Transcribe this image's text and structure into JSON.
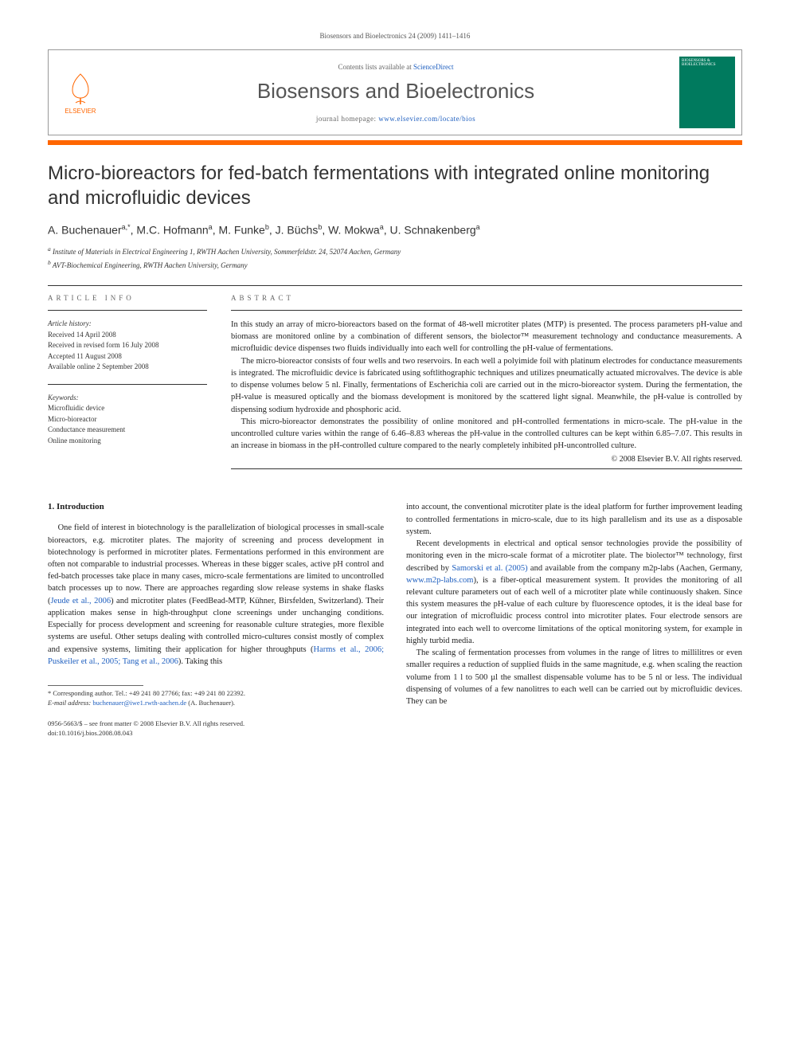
{
  "page_header": "Biosensors and Bioelectronics 24 (2009) 1411–1416",
  "journal_box": {
    "contents_text": "Contents lists available at ",
    "contents_link": "ScienceDirect",
    "journal_title": "Biosensors and Bioelectronics",
    "homepage_text": "journal homepage: ",
    "homepage_link": "www.elsevier.com/locate/bios",
    "publisher_logo_text": "ELSEVIER",
    "cover_text": "BIOSENSORS & BIOELECTRONICS"
  },
  "article": {
    "title": "Micro-bioreactors for fed-batch fermentations with integrated online monitoring and microfluidic devices",
    "authors_html": "A. Buchenauer<sup>a,*</sup>, M.C. Hofmann<sup>a</sup>, M. Funke<sup>b</sup>, J. Büchs<sup>b</sup>, W. Mokwa<sup>a</sup>, U. Schnakenberg<sup>a</sup>",
    "affiliations": {
      "a": "Institute of Materials in Electrical Engineering 1, RWTH Aachen University, Sommerfeldstr. 24, 52074 Aachen, Germany",
      "b": "AVT-Biochemical Engineering, RWTH Aachen University, Germany"
    }
  },
  "article_info": {
    "heading": "article info",
    "history_label": "Article history:",
    "history": [
      "Received 14 April 2008",
      "Received in revised form 16 July 2008",
      "Accepted 11 August 2008",
      "Available online 2 September 2008"
    ],
    "keywords_label": "Keywords:",
    "keywords": [
      "Microfluidic device",
      "Micro-bioreactor",
      "Conductance measurement",
      "Online monitoring"
    ]
  },
  "abstract": {
    "heading": "abstract",
    "paragraphs": [
      "In this study an array of micro-bioreactors based on the format of 48-well microtiter plates (MTP) is presented. The process parameters pH-value and biomass are monitored online by a combination of different sensors, the biolector™ measurement technology and conductance measurements. A microfluidic device dispenses two fluids individually into each well for controlling the pH-value of fermentations.",
      "The micro-bioreactor consists of four wells and two reservoirs. In each well a polyimide foil with platinum electrodes for conductance measurements is integrated. The microfluidic device is fabricated using softlithographic techniques and utilizes pneumatically actuated microvalves. The device is able to dispense volumes below 5 nl. Finally, fermentations of Escherichia coli are carried out in the micro-bioreactor system. During the fermentation, the pH-value is measured optically and the biomass development is monitored by the scattered light signal. Meanwhile, the pH-value is controlled by dispensing sodium hydroxide and phosphoric acid.",
      "This micro-bioreactor demonstrates the possibility of online monitored and pH-controlled fermentations in micro-scale. The pH-value in the uncontrolled culture varies within the range of 6.46–8.83 whereas the pH-value in the controlled cultures can be kept within 6.85–7.07. This results in an increase in biomass in the pH-controlled culture compared to the nearly completely inhibited pH-uncontrolled culture."
    ],
    "copyright": "© 2008 Elsevier B.V. All rights reserved."
  },
  "body": {
    "section_number": "1.",
    "section_title": "Introduction",
    "left_paragraphs": [
      "One field of interest in biotechnology is the parallelization of biological processes in small-scale bioreactors, e.g. microtiter plates. The majority of screening and process development in biotechnology is performed in microtiter plates. Fermentations performed in this environment are often not comparable to industrial processes. Whereas in these bigger scales, active pH control and fed-batch processes take place in many cases, micro-scale fermentations are limited to uncontrolled batch processes up to now. There are approaches regarding slow release systems in shake flasks (Jeude et al., 2006) and microtiter plates (FeedBead-MTP, Kühner, Birsfelden, Switzerland). Their application makes sense in high-throughput clone screenings under unchanging conditions. Especially for process development and screening for reasonable culture strategies, more flexible systems are useful. Other setups dealing with controlled micro-cultures consist mostly of complex and expensive systems, limiting their application for higher throughputs (Harms et al., 2006; Puskeiler et al., 2005; Tang et al., 2006). Taking this"
    ],
    "right_paragraphs": [
      "into account, the conventional microtiter plate is the ideal platform for further improvement leading to controlled fermentations in micro-scale, due to its high parallelism and its use as a disposable system.",
      "Recent developments in electrical and optical sensor technologies provide the possibility of monitoring even in the micro-scale format of a microtiter plate. The biolector™ technology, first described by Samorski et al. (2005) and available from the company m2p-labs (Aachen, Germany, www.m2p-labs.com), is a fiber-optical measurement system. It provides the monitoring of all relevant culture parameters out of each well of a microtiter plate while continuously shaken. Since this system measures the pH-value of each culture by fluorescence optodes, it is the ideal base for our integration of microfluidic process control into microtiter plates. Four electrode sensors are integrated into each well to overcome limitations of the optical monitoring system, for example in highly turbid media.",
      "The scaling of fermentation processes from volumes in the range of litres to millilitres or even smaller requires a reduction of supplied fluids in the same magnitude, e.g. when scaling the reaction volume from 1 l to 500 µl the smallest dispensable volume has to be 5 nl or less. The individual dispensing of volumes of a few nanolitres to each well can be carried out by microfluidic devices. They can be"
    ]
  },
  "footnote": {
    "corr_label": "* Corresponding author. Tel.: +49 241 80 27766; fax: +49 241 80 22392.",
    "email_label": "E-mail address: ",
    "email": "buchenauer@iwe1.rwth-aachen.de",
    "email_suffix": " (A. Buchenauer)."
  },
  "footer": {
    "issn_line": "0956-5663/$ – see front matter © 2008 Elsevier B.V. All rights reserved.",
    "doi_line": "doi:10.1016/j.bios.2008.08.043"
  },
  "colors": {
    "orange": "#ff6600",
    "link": "#2060c0",
    "cover_green": "#007a5e",
    "text": "#1a1a1a",
    "muted": "#666666"
  }
}
